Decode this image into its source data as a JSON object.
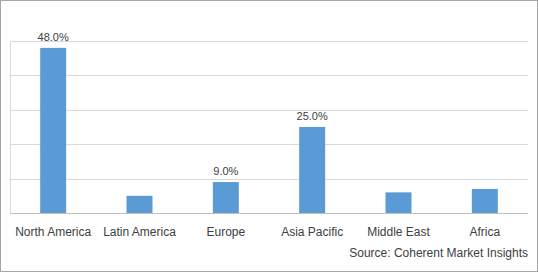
{
  "chart_data": {
    "type": "bar",
    "categories": [
      "North America",
      "Latin America",
      "Europe",
      "Asia Pacific",
      "Middle East",
      "Africa"
    ],
    "values": [
      48.0,
      5,
      9.0,
      25.0,
      6,
      7
    ],
    "value_labels": [
      "48.0%",
      null,
      "9.0%",
      "25.0%",
      null,
      null
    ],
    "data_labels": true,
    "color": "#5b9bd5",
    "ylim": [
      0,
      50
    ],
    "yticks": [
      0,
      10,
      20,
      30,
      40,
      50
    ],
    "grid": true,
    "tick_labels": "x",
    "source": "Source: Coherent Market Insights"
  }
}
